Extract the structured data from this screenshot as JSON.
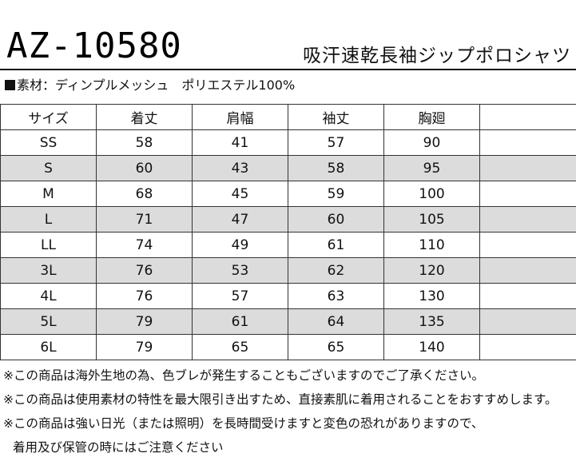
{
  "product": {
    "code": "AZ-10580",
    "title": "吸汗速乾長袖ジップポロシャツ"
  },
  "material": {
    "label": "素材：ディンプルメッシュ　ポリエステル100%"
  },
  "size_table": {
    "headers": [
      "サイズ",
      "着丈",
      "肩幅",
      "袖丈",
      "胸廻",
      ""
    ],
    "rows": [
      [
        "SS",
        "58",
        "41",
        "57",
        "90",
        ""
      ],
      [
        "S",
        "60",
        "43",
        "58",
        "95",
        ""
      ],
      [
        "M",
        "68",
        "45",
        "59",
        "100",
        ""
      ],
      [
        "L",
        "71",
        "47",
        "60",
        "105",
        ""
      ],
      [
        "LL",
        "74",
        "49",
        "61",
        "110",
        ""
      ],
      [
        "3L",
        "76",
        "53",
        "62",
        "120",
        ""
      ],
      [
        "4L",
        "76",
        "57",
        "63",
        "130",
        ""
      ],
      [
        "5L",
        "79",
        "61",
        "64",
        "135",
        ""
      ],
      [
        "6L",
        "79",
        "65",
        "65",
        "140",
        ""
      ]
    ],
    "shade_color": "#dcdcdc"
  },
  "notes": [
    "※この商品は海外生地の為、色ブレが発生することもございますのでご了承ください。",
    "※この商品は使用素材の特性を最大限引き出すため、直接素肌に着用されることをおすすめします。",
    "※この商品は強い日光（または照明）を長時間受けますと変色の恐れがありますので、",
    "着用及び保管の時にはご注意ください"
  ]
}
